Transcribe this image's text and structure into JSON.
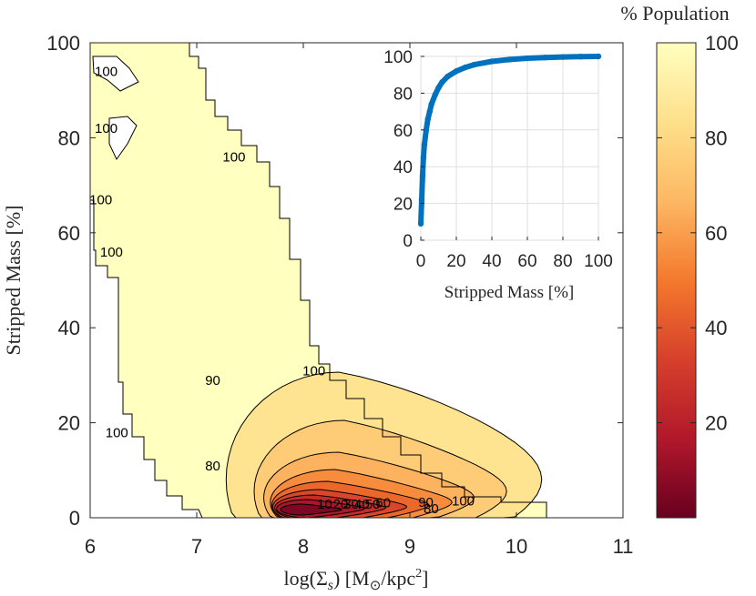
{
  "chart_data": [
    {
      "type": "contour",
      "xlabel": "log(Σ_s) [M_⊙/kpc²]",
      "ylabel": "Stripped Mass [%]",
      "xlim": [
        6,
        11
      ],
      "ylim": [
        0,
        100
      ],
      "xticks": [
        "6",
        "7",
        "8",
        "9",
        "10",
        "11"
      ],
      "yticks": [
        "0",
        "20",
        "40",
        "60",
        "80",
        "100"
      ],
      "contour_levels": [
        10,
        20,
        30,
        40,
        50,
        60,
        70,
        80,
        90,
        100
      ],
      "contour_labels": [
        {
          "text": "100",
          "x": 6.15,
          "y": 93
        },
        {
          "text": "100",
          "x": 6.15,
          "y": 81
        },
        {
          "text": "100",
          "x": 7.35,
          "y": 75
        },
        {
          "text": "100",
          "x": 6.1,
          "y": 66
        },
        {
          "text": "100",
          "x": 6.2,
          "y": 55
        },
        {
          "text": "100",
          "x": 8.1,
          "y": 30
        },
        {
          "text": "100",
          "x": 6.25,
          "y": 17
        },
        {
          "text": "90",
          "x": 7.15,
          "y": 28
        },
        {
          "text": "80",
          "x": 7.15,
          "y": 10
        },
        {
          "text": "100",
          "x": 9.5,
          "y": 2.6
        },
        {
          "text": "90",
          "x": 9.15,
          "y": 2.3
        },
        {
          "text": "80",
          "x": 9.2,
          "y": 1.0
        },
        {
          "text": "10",
          "x": 8.2,
          "y": 1.9
        },
        {
          "text": "20",
          "x": 8.35,
          "y": 1.9
        },
        {
          "text": "30",
          "x": 8.45,
          "y": 1.9
        },
        {
          "text": "40",
          "x": 8.55,
          "y": 1.9
        },
        {
          "text": "50",
          "x": 8.65,
          "y": 1.9
        },
        {
          "text": "60",
          "x": 8.75,
          "y": 2.2
        }
      ],
      "colorbar": {
        "title": "% Population",
        "range": [
          0,
          100
        ],
        "ticks": [
          "20",
          "40",
          "60",
          "80",
          "100"
        ],
        "colormap": [
          "#67001f",
          "#b2182b",
          "#d6402b",
          "#f4792d",
          "#fdb863",
          "#fee08b",
          "#ffffbf"
        ]
      }
    },
    {
      "type": "scatter",
      "xlabel": "Stripped Mass [%]",
      "xlim": [
        0,
        100
      ],
      "ylim": [
        0,
        100
      ],
      "xticks": [
        "0",
        "20",
        "40",
        "60",
        "80",
        "100"
      ],
      "yticks": [
        "0",
        "20",
        "40",
        "60",
        "80",
        "100"
      ],
      "grid": true,
      "color": "#0072bd",
      "x": [
        0,
        0.5,
        1,
        1.5,
        2,
        3,
        4,
        5,
        6,
        8,
        10,
        12,
        15,
        20,
        25,
        30,
        40,
        50,
        60,
        70,
        80,
        90,
        100
      ],
      "y": [
        9,
        22,
        35,
        45,
        52,
        60,
        66,
        70,
        74,
        79,
        83,
        86,
        89,
        92,
        94,
        95.5,
        97.3,
        98.3,
        99,
        99.4,
        99.7,
        99.9,
        100
      ]
    }
  ]
}
